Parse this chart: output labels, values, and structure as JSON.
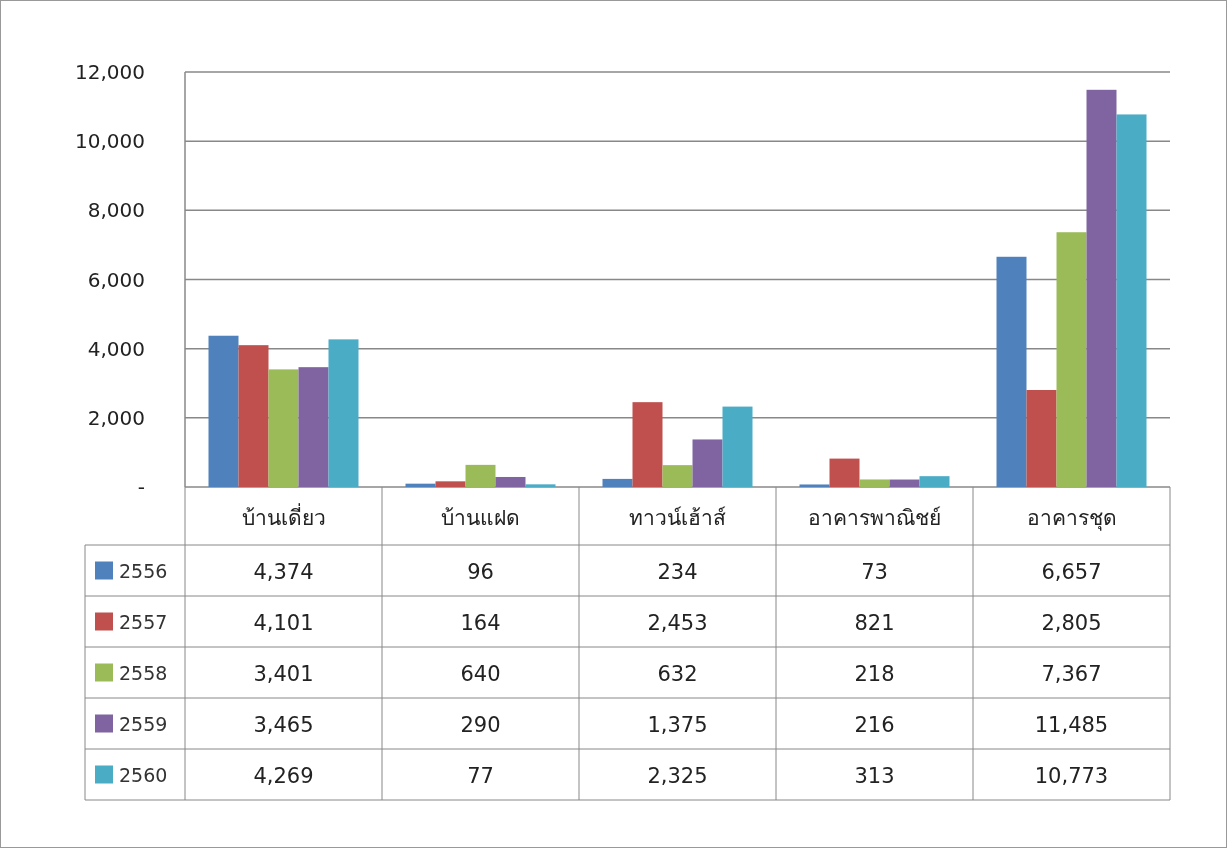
{
  "chart_data": {
    "type": "bar",
    "categories": [
      "บ้านเดี่ยว",
      "บ้านแฝด",
      "ทาวน์เฮ้าส์",
      "อาคารพาณิชย์",
      "อาคารชุด"
    ],
    "series": [
      {
        "name": "2556",
        "color": "#4f81bd",
        "values": [
          4374,
          96,
          234,
          73,
          6657
        ],
        "value_labels": [
          "4,374",
          "96",
          "234",
          "73",
          "6,657"
        ]
      },
      {
        "name": "2557",
        "color": "#c0504d",
        "values": [
          4101,
          164,
          2453,
          821,
          2805
        ],
        "value_labels": [
          "4,101",
          "164",
          "2,453",
          "821",
          "2,805"
        ]
      },
      {
        "name": "2558",
        "color": "#9bbb59",
        "values": [
          3401,
          640,
          632,
          218,
          7367
        ],
        "value_labels": [
          "3,401",
          "640",
          "632",
          "218",
          "7,367"
        ]
      },
      {
        "name": "2559",
        "color": "#8064a2",
        "values": [
          3465,
          290,
          1375,
          216,
          11485
        ],
        "value_labels": [
          "3,465",
          "290",
          "1,375",
          "216",
          "11,485"
        ]
      },
      {
        "name": "2560",
        "color": "#4bacc6",
        "values": [
          4269,
          77,
          2325,
          313,
          10773
        ],
        "value_labels": [
          "4,269",
          "77",
          "2,325",
          "313",
          "10,773"
        ]
      }
    ],
    "ylim": [
      0,
      12000
    ],
    "yticks": [
      {
        "value": 0,
        "label": "-"
      },
      {
        "value": 2000,
        "label": "2,000"
      },
      {
        "value": 4000,
        "label": "4,000"
      },
      {
        "value": 6000,
        "label": "6,000"
      },
      {
        "value": 8000,
        "label": "8,000"
      },
      {
        "value": 10000,
        "label": "10,000"
      },
      {
        "value": 12000,
        "label": "12,000"
      }
    ],
    "grid": "y",
    "legend": "bottom left"
  }
}
